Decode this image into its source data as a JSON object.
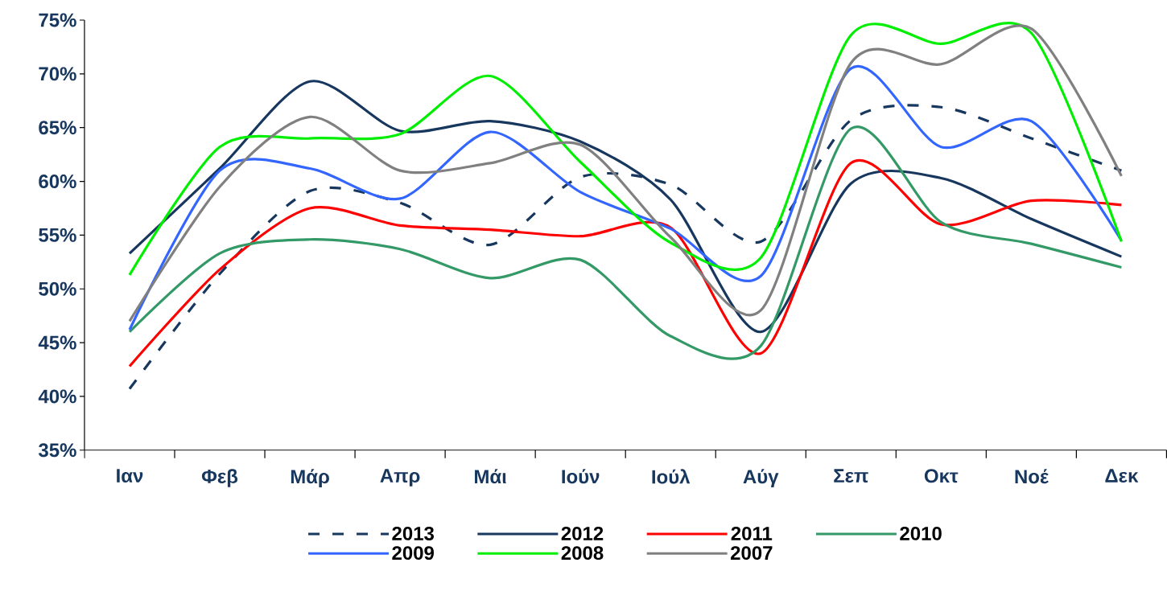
{
  "chart_data": {
    "type": "line",
    "categories": [
      "Ιαν",
      "Φεβ",
      "Μάρ",
      "Απρ",
      "Μάι",
      "Ιούν",
      "Ιούλ",
      "Αύγ",
      "Σεπ",
      "Οκτ",
      "Νοέ",
      "Δεκ"
    ],
    "ylim": [
      35,
      75
    ],
    "yticks": [
      {
        "value": 35,
        "label": "35%"
      },
      {
        "value": 40,
        "label": "40%"
      },
      {
        "value": 45,
        "label": "45%"
      },
      {
        "value": 50,
        "label": "50%"
      },
      {
        "value": 55,
        "label": "55%"
      },
      {
        "value": 60,
        "label": "60%"
      },
      {
        "value": 65,
        "label": "65%"
      },
      {
        "value": 70,
        "label": "70%"
      },
      {
        "value": 75,
        "label": "75%"
      }
    ],
    "grid": false,
    "legend": "bottom",
    "marker": "none",
    "series": [
      {
        "name": "2013",
        "color": "#17375e",
        "line_style": "dashed",
        "values": [
          40.7,
          51.4,
          59.1,
          58.0,
          54.1,
          60.4,
          59.7,
          54.4,
          65.7,
          66.9,
          64.0,
          61.0
        ]
      },
      {
        "name": "2012",
        "color": "#17375e",
        "line_style": "solid",
        "values": [
          53.3,
          61.2,
          69.3,
          64.7,
          65.6,
          63.7,
          58.3,
          46.0,
          59.8,
          60.3,
          56.5,
          53.0
        ]
      },
      {
        "name": "2011",
        "color": "#ff0000",
        "line_style": "solid",
        "values": [
          42.8,
          51.8,
          57.5,
          55.9,
          55.5,
          54.9,
          55.7,
          44.0,
          61.7,
          56.0,
          58.2,
          57.8
        ]
      },
      {
        "name": "2010",
        "color": "#339966",
        "line_style": "solid",
        "values": [
          46.0,
          53.3,
          54.6,
          53.7,
          51.0,
          52.7,
          45.6,
          44.7,
          64.9,
          56.2,
          54.2,
          52.0
        ]
      },
      {
        "name": "2009",
        "color": "#3366ff",
        "line_style": "solid",
        "values": [
          46.2,
          61.0,
          61.2,
          58.4,
          64.6,
          59.0,
          55.6,
          51.2,
          70.5,
          63.2,
          65.6,
          54.5
        ]
      },
      {
        "name": "2008",
        "color": "#00ee00",
        "line_style": "solid",
        "values": [
          51.3,
          63.2,
          64.0,
          64.4,
          69.8,
          61.8,
          54.3,
          52.9,
          73.6,
          72.8,
          73.8,
          54.4
        ]
      },
      {
        "name": "2007",
        "color": "#808080",
        "line_style": "solid",
        "values": [
          47.0,
          59.5,
          66.0,
          61.0,
          61.7,
          63.4,
          54.8,
          48.0,
          71.0,
          70.9,
          74.2,
          60.5
        ]
      }
    ]
  }
}
